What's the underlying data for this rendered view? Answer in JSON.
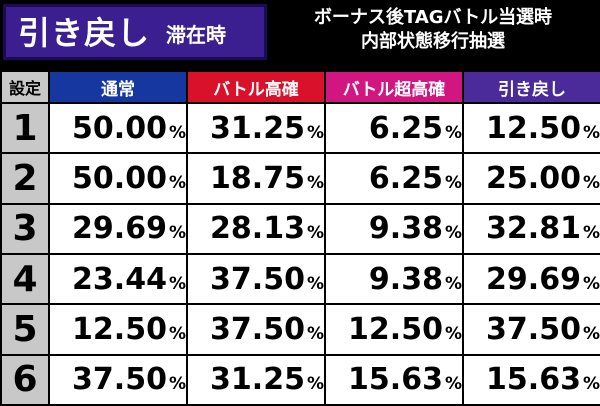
{
  "header": {
    "badge_main": "引き戻し",
    "badge_sub": "滞在時",
    "title_line1": "ボーナス後TAGバトル当選時",
    "title_line2": "内部状態移行抽選"
  },
  "table": {
    "columns": [
      "設定",
      "通常",
      "バトル高確",
      "バトル超高確",
      "引き戻し"
    ],
    "column_colors": [
      "#c8c8c8",
      "#1637a0",
      "#d9112a",
      "#d21681",
      "#4b2a99"
    ],
    "percent_symbol": "%",
    "rows": [
      {
        "setting": "1",
        "values": [
          "50.00",
          "31.25",
          "6.25",
          "12.50"
        ]
      },
      {
        "setting": "2",
        "values": [
          "50.00",
          "18.75",
          "6.25",
          "25.00"
        ]
      },
      {
        "setting": "3",
        "values": [
          "29.69",
          "28.13",
          "9.38",
          "32.81"
        ]
      },
      {
        "setting": "4",
        "values": [
          "23.44",
          "37.50",
          "9.38",
          "29.69"
        ]
      },
      {
        "setting": "5",
        "values": [
          "12.50",
          "37.50",
          "12.50",
          "37.50"
        ]
      },
      {
        "setting": "6",
        "values": [
          "37.50",
          "31.25",
          "15.63",
          "15.63"
        ]
      }
    ]
  }
}
